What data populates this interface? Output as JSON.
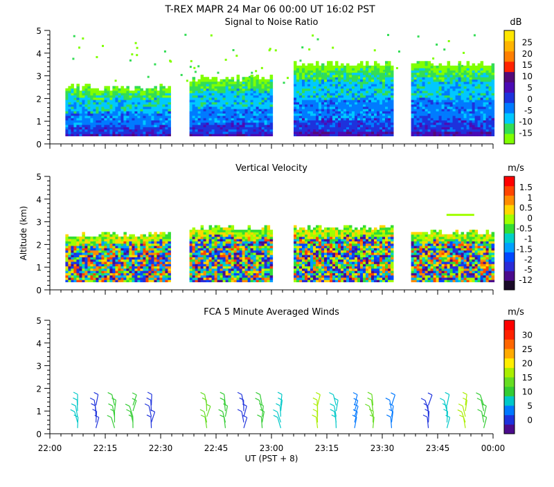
{
  "page_title": "T-REX   MAPR 24 Mar 06   00:00 UT   16:02   PST",
  "chart_data": [
    {
      "type": "heatmap",
      "title": "Signal to Noise Ratio",
      "ylabel": "",
      "ylim": [
        0,
        5
      ],
      "y_ticks": [
        "0",
        "1",
        "2",
        "3",
        "4",
        "5"
      ],
      "colorbar_unit": "dB",
      "colorbar_labels": [
        "-15",
        "-10",
        "-5",
        "0",
        "5",
        "10",
        "15",
        "20",
        "25"
      ],
      "colorbar_colors": [
        "#80ff00",
        "#33dd55",
        "#00c8ff",
        "#007bff",
        "#1e32dc",
        "#4b0bb4",
        "#550a78",
        "#ff2300",
        "#ff7f00",
        "#ffb400",
        "#ffe600"
      ],
      "segments": [
        {
          "start": 22.07,
          "end": 22.54,
          "top": 2.45
        },
        {
          "start": 22.63,
          "end": 23.0,
          "top": 2.85
        },
        {
          "start": 23.1,
          "end": 23.54,
          "top": 3.5
        },
        {
          "start": 23.63,
          "end": 24.0,
          "top": 3.5
        }
      ]
    },
    {
      "type": "heatmap",
      "title": "Vertical Velocity",
      "ylabel": "Altitude  (km)",
      "ylim": [
        0,
        5
      ],
      "y_ticks": [
        "0",
        "1",
        "2",
        "3",
        "4",
        "5"
      ],
      "colorbar_unit": "m/s",
      "colorbar_labels": [
        "-12",
        "-5",
        "-2",
        "-1.5",
        "-1",
        "-0.5",
        "0",
        "0.5",
        "1",
        "1.5"
      ],
      "colorbar_colors": [
        "#1a0a28",
        "#4b0b8c",
        "#2b2bd6",
        "#0047ff",
        "#00a0ff",
        "#00d0c8",
        "#33dd33",
        "#a0ff00",
        "#ffd700",
        "#ff8c00",
        "#ff4500",
        "#ff0000"
      ],
      "segments": [
        {
          "start": 22.07,
          "end": 22.54,
          "top": 2.4
        },
        {
          "start": 22.63,
          "end": 23.0,
          "top": 2.7
        },
        {
          "start": 23.1,
          "end": 23.54,
          "top": 2.7
        },
        {
          "start": 23.63,
          "end": 24.0,
          "top": 2.5
        }
      ]
    },
    {
      "type": "scatter",
      "subtype": "wind-barbs",
      "title": "FCA 5 Minute Averaged Winds",
      "xlabel": "UT  (PST + 8)",
      "ylim": [
        0,
        5
      ],
      "y_ticks": [
        "0",
        "1",
        "2",
        "3",
        "4",
        "5"
      ],
      "x_tick_labels": [
        "22:00",
        "22:15",
        "22:30",
        "22:45",
        "23:00",
        "23:15",
        "23:30",
        "23:45",
        "00:00"
      ],
      "colorbar_unit": "m/s",
      "colorbar_labels": [
        "0",
        "5",
        "10",
        "15",
        "20",
        "25",
        "30"
      ],
      "colorbar_colors": [
        "#4b0b8c",
        "#1e32dc",
        "#0078ff",
        "#00c8c8",
        "#33cc33",
        "#66dd22",
        "#aaee00",
        "#ffee00",
        "#ffaa00",
        "#ff6600",
        "#ff2200",
        "#ff0000"
      ],
      "barb_times": [
        22.125,
        22.208,
        22.292,
        22.375,
        22.458,
        22.708,
        22.792,
        22.875,
        22.958,
        23.042,
        23.208,
        23.292,
        23.375,
        23.458,
        23.542,
        23.708,
        23.792,
        23.875,
        23.958
      ]
    }
  ]
}
